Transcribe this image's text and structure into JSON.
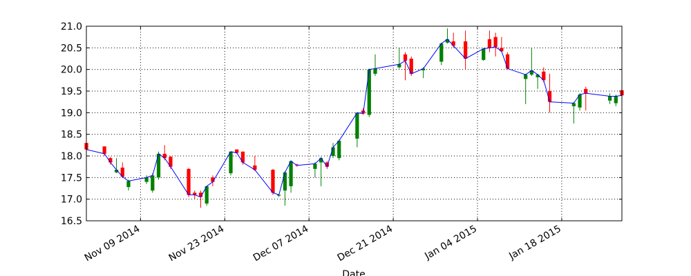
{
  "chart_data": {
    "type": "candlestick",
    "xlabel": "Date",
    "x": [
      "2014-10-31",
      "2014-11-03",
      "2014-11-04",
      "2014-11-05",
      "2014-11-06",
      "2014-11-07",
      "2014-11-10",
      "2014-11-11",
      "2014-11-12",
      "2014-11-13",
      "2014-11-14",
      "2014-11-17",
      "2014-11-18",
      "2014-11-19",
      "2014-11-20",
      "2014-11-21",
      "2014-11-24",
      "2014-11-25",
      "2014-11-26",
      "2014-11-28",
      "2014-12-01",
      "2014-12-02",
      "2014-12-03",
      "2014-12-04",
      "2014-12-05",
      "2014-12-08",
      "2014-12-09",
      "2014-12-10",
      "2014-12-11",
      "2014-12-12",
      "2014-12-15",
      "2014-12-16",
      "2014-12-17",
      "2014-12-18",
      "2014-12-22",
      "2014-12-23",
      "2014-12-24",
      "2014-12-26",
      "2014-12-29",
      "2014-12-30",
      "2014-12-31",
      "2015-01-02",
      "2015-01-05",
      "2015-01-06",
      "2015-01-07",
      "2015-01-08",
      "2015-01-09",
      "2015-01-12",
      "2015-01-13",
      "2015-01-14",
      "2015-01-15",
      "2015-01-16",
      "2015-01-20",
      "2015-01-21",
      "2015-01-22",
      "2015-01-26",
      "2015-01-27",
      "2015-01-28"
    ],
    "open": [
      18.3,
      18.22,
      17.95,
      17.62,
      17.73,
      17.28,
      17.4,
      17.2,
      17.5,
      18.05,
      17.98,
      17.7,
      17.15,
      17.15,
      16.9,
      17.5,
      17.6,
      18.15,
      18.1,
      17.78,
      17.68,
      17.08,
      17.2,
      17.3,
      17.8,
      17.7,
      17.85,
      17.85,
      18.0,
      17.95,
      18.4,
      19.05,
      18.95,
      19.9,
      20.05,
      20.35,
      20.25,
      19.98,
      20.18,
      20.62,
      20.65,
      20.65,
      20.22,
      20.7,
      20.75,
      20.5,
      20.35,
      19.78,
      19.88,
      19.82,
      19.95,
      19.5,
      19.15,
      19.12,
      19.55,
      19.28,
      19.22,
      19.52
    ],
    "high": [
      18.3,
      18.22,
      17.98,
      17.95,
      17.85,
      17.45,
      17.55,
      17.6,
      18.1,
      18.25,
      18.0,
      17.72,
      17.2,
      17.2,
      17.3,
      17.55,
      18.1,
      18.15,
      18.1,
      18.0,
      17.7,
      17.12,
      17.65,
      17.9,
      17.82,
      17.85,
      17.98,
      17.88,
      18.3,
      18.38,
      19.0,
      19.1,
      20.02,
      20.35,
      20.5,
      20.4,
      20.3,
      20.05,
      20.62,
      20.95,
      20.85,
      20.9,
      20.5,
      20.9,
      20.85,
      20.75,
      20.4,
      19.9,
      20.5,
      19.9,
      20.05,
      19.9,
      19.25,
      19.45,
      19.6,
      19.45,
      19.42,
      19.55
    ],
    "low": [
      18.1,
      18.0,
      17.8,
      17.6,
      17.5,
      17.2,
      17.35,
      17.15,
      17.45,
      17.9,
      17.7,
      17.05,
      17.0,
      16.8,
      16.85,
      17.3,
      17.55,
      18.05,
      17.8,
      17.65,
      17.1,
      17.05,
      16.85,
      17.15,
      17.75,
      17.5,
      17.3,
      17.7,
      17.95,
      17.9,
      18.2,
      18.95,
      18.9,
      19.85,
      20.02,
      19.75,
      19.85,
      19.8,
      20.1,
      20.6,
      20.5,
      20.0,
      20.2,
      20.4,
      20.3,
      20.4,
      20.0,
      19.2,
      19.85,
      19.55,
      19.7,
      19.0,
      18.75,
      19.05,
      19.05,
      19.2,
      19.15,
      19.35
    ],
    "close": [
      18.15,
      18.05,
      17.85,
      17.68,
      17.52,
      17.42,
      17.5,
      17.55,
      18.05,
      17.95,
      17.75,
      17.1,
      17.1,
      17.05,
      17.3,
      17.4,
      18.1,
      18.07,
      17.85,
      17.68,
      17.15,
      17.1,
      17.62,
      17.88,
      17.78,
      17.82,
      17.95,
      17.75,
      18.2,
      18.35,
      19.0,
      18.98,
      20.0,
      20.02,
      20.12,
      20.2,
      19.9,
      20.02,
      20.6,
      20.7,
      20.55,
      20.25,
      20.48,
      20.5,
      20.52,
      20.42,
      20.02,
      19.88,
      19.98,
      19.88,
      19.75,
      19.25,
      19.22,
      19.42,
      19.45,
      19.38,
      19.38,
      19.4
    ],
    "up_color": "green",
    "down_color": "red",
    "line_color": "blue",
    "xlim": [
      "2014-10-31",
      "2015-01-28"
    ],
    "xticks": [
      {
        "value": "2014-11-09",
        "label": "Nov 09 2014"
      },
      {
        "value": "2014-11-23",
        "label": "Nov 23 2014"
      },
      {
        "value": "2014-12-07",
        "label": "Dec 07 2014"
      },
      {
        "value": "2014-12-21",
        "label": "Dec 21 2014"
      },
      {
        "value": "2015-01-04",
        "label": "Jan 04 2015"
      },
      {
        "value": "2015-01-18",
        "label": "Jan 18 2015"
      }
    ],
    "ylim": [
      16.5,
      21.0
    ],
    "yticks": [
      16.5,
      {
        "value": 17,
        "label": "17.0"
      },
      17.5,
      {
        "value": 18,
        "label": "18.0"
      },
      18.5,
      {
        "value": 19,
        "label": "19.0"
      },
      19.5,
      {
        "value": 20,
        "label": "20.0"
      },
      20.5,
      {
        "value": 21,
        "label": "21.0"
      }
    ],
    "grid": true
  }
}
